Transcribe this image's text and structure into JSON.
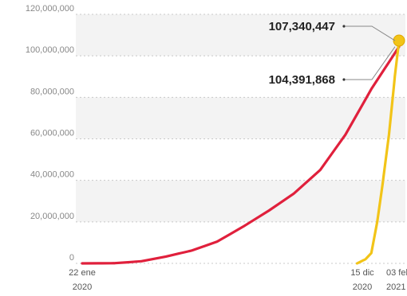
{
  "chart_data": {
    "type": "line",
    "title": "",
    "xlabel": "",
    "ylabel": "",
    "ylim": [
      0,
      120000000
    ],
    "y_ticks": [
      "0",
      "20,000,000",
      "40,000,000",
      "60,000,000",
      "80,000,000",
      "100,000,000",
      "120,000,000"
    ],
    "y_tick_values": [
      0,
      20000000,
      40000000,
      60000000,
      80000000,
      100000000,
      120000000
    ],
    "x_tick_labels": [
      {
        "day": "22 ene",
        "year": "2020"
      },
      {
        "day": "15 dic",
        "year": "2020"
      },
      {
        "day": "03 feb",
        "year": "2021"
      }
    ],
    "grid": true,
    "series": [
      {
        "color": "#e0203c",
        "x": [
          "2020-01-22",
          "2020-03-01",
          "2020-04-01",
          "2020-05-01",
          "2020-06-01",
          "2020-07-01",
          "2020-08-01",
          "2020-09-01",
          "2020-10-01",
          "2020-11-01",
          "2020-12-01",
          "2021-01-01",
          "2021-02-03"
        ],
        "values": [
          0,
          100000,
          1000000,
          3300000,
          6200000,
          10500000,
          17700000,
          25500000,
          33800000,
          45000000,
          62000000,
          84000000,
          104391868
        ]
      },
      {
        "color": "#f2c418",
        "x": [
          "2020-12-15",
          "2020-12-25",
          "2021-01-01",
          "2021-01-08",
          "2021-01-15",
          "2021-01-22",
          "2021-01-29",
          "2021-02-03"
        ],
        "values": [
          0,
          2000000,
          5000000,
          20000000,
          40000000,
          62000000,
          90000000,
          107340447
        ]
      }
    ],
    "annotations": [
      {
        "text": "107,340,447",
        "value": 107340447,
        "series": 1
      },
      {
        "text": "104,391,868",
        "value": 104391868,
        "series": 0
      }
    ]
  }
}
